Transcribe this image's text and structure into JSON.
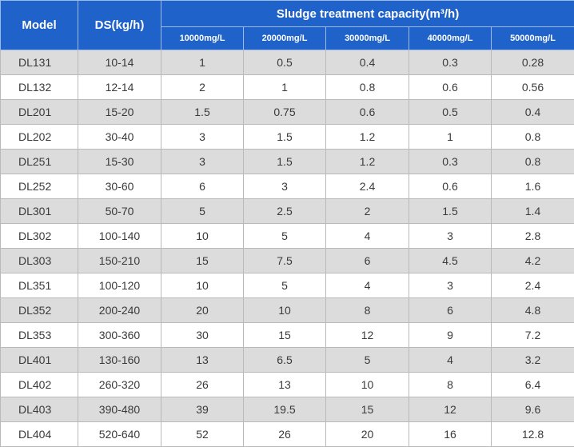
{
  "headers": {
    "model": "Model",
    "ds": "DS(kg/h)",
    "capacity": "Sludge treatment capacity(m³/h)",
    "concentrations": [
      "10000mg/L",
      "20000mg/L",
      "30000mg/L",
      "40000mg/L",
      "50000mg/L"
    ]
  },
  "rows": [
    {
      "model": "DL131",
      "ds": "10-14",
      "c": [
        "1",
        "0.5",
        "0.4",
        "0.3",
        "0.28"
      ]
    },
    {
      "model": "DL132",
      "ds": "12-14",
      "c": [
        "2",
        "1",
        "0.8",
        "0.6",
        "0.56"
      ]
    },
    {
      "model": "DL201",
      "ds": "15-20",
      "c": [
        "1.5",
        "0.75",
        "0.6",
        "0.5",
        "0.4"
      ]
    },
    {
      "model": "DL202",
      "ds": "30-40",
      "c": [
        "3",
        "1.5",
        "1.2",
        "1",
        "0.8"
      ]
    },
    {
      "model": "DL251",
      "ds": "15-30",
      "c": [
        "3",
        "1.5",
        "1.2",
        "0.3",
        "0.8"
      ]
    },
    {
      "model": "DL252",
      "ds": "30-60",
      "c": [
        "6",
        "3",
        "2.4",
        "0.6",
        "1.6"
      ]
    },
    {
      "model": "DL301",
      "ds": "50-70",
      "c": [
        "5",
        "2.5",
        "2",
        "1.5",
        "1.4"
      ]
    },
    {
      "model": "DL302",
      "ds": "100-140",
      "c": [
        "10",
        "5",
        "4",
        "3",
        "2.8"
      ]
    },
    {
      "model": "DL303",
      "ds": "150-210",
      "c": [
        "15",
        "7.5",
        "6",
        "4.5",
        "4.2"
      ]
    },
    {
      "model": "DL351",
      "ds": "100-120",
      "c": [
        "10",
        "5",
        "4",
        "3",
        "2.4"
      ]
    },
    {
      "model": "DL352",
      "ds": "200-240",
      "c": [
        "20",
        "10",
        "8",
        "6",
        "4.8"
      ]
    },
    {
      "model": "DL353",
      "ds": "300-360",
      "c": [
        "30",
        "15",
        "12",
        "9",
        "7.2"
      ]
    },
    {
      "model": "DL401",
      "ds": "130-160",
      "c": [
        "13",
        "6.5",
        "5",
        "4",
        "3.2"
      ]
    },
    {
      "model": "DL402",
      "ds": "260-320",
      "c": [
        "26",
        "13",
        "10",
        "8",
        "6.4"
      ]
    },
    {
      "model": "DL403",
      "ds": "390-480",
      "c": [
        "39",
        "19.5",
        "15",
        "12",
        "9.6"
      ]
    },
    {
      "model": "DL404",
      "ds": "520-640",
      "c": [
        "52",
        "26",
        "20",
        "16",
        "12.8"
      ]
    }
  ],
  "colors": {
    "header_bg": "#1f62c9",
    "header_text": "#ffffff",
    "row_shade": "#dcdcdc",
    "row_plain": "#ffffff",
    "grid": "#b9b9b9"
  }
}
